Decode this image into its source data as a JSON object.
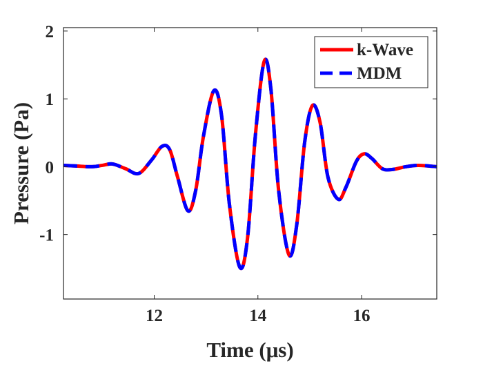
{
  "chart_data": {
    "type": "line",
    "title": "",
    "xlabel": "Time (μs)",
    "ylabel": "Pressure (Pa)",
    "xlim": [
      10.25,
      17.45
    ],
    "ylim": [
      -1.95,
      2.05
    ],
    "x_ticks": [
      12,
      14,
      16
    ],
    "y_ticks": [
      2,
      1,
      0,
      -1
    ],
    "x_tick_labels": [
      "12",
      "14",
      "16"
    ],
    "y_tick_labels": [
      "2",
      "1",
      "0",
      "-1"
    ],
    "grid": false,
    "legend_position": "top-right",
    "series": [
      {
        "name": "k-Wave",
        "color": "#ff0000",
        "style": "solid",
        "points": [
          [
            10.25,
            0.02
          ],
          [
            10.5,
            0.01
          ],
          [
            10.8,
            0.0
          ],
          [
            11.0,
            0.02
          ],
          [
            11.2,
            0.04
          ],
          [
            11.45,
            -0.03
          ],
          [
            11.7,
            -0.1
          ],
          [
            11.95,
            0.1
          ],
          [
            12.15,
            0.3
          ],
          [
            12.3,
            0.25
          ],
          [
            12.45,
            -0.15
          ],
          [
            12.65,
            -0.65
          ],
          [
            12.8,
            -0.35
          ],
          [
            12.95,
            0.45
          ],
          [
            13.15,
            1.12
          ],
          [
            13.3,
            0.75
          ],
          [
            13.45,
            -0.55
          ],
          [
            13.65,
            -1.48
          ],
          [
            13.8,
            -1.05
          ],
          [
            13.95,
            0.45
          ],
          [
            14.12,
            1.55
          ],
          [
            14.25,
            1.15
          ],
          [
            14.4,
            -0.35
          ],
          [
            14.6,
            -1.3
          ],
          [
            14.75,
            -0.85
          ],
          [
            14.9,
            0.35
          ],
          [
            15.05,
            0.9
          ],
          [
            15.2,
            0.65
          ],
          [
            15.35,
            -0.15
          ],
          [
            15.55,
            -0.48
          ],
          [
            15.7,
            -0.3
          ],
          [
            15.9,
            0.08
          ],
          [
            16.05,
            0.19
          ],
          [
            16.2,
            0.12
          ],
          [
            16.4,
            -0.03
          ],
          [
            16.6,
            -0.04
          ],
          [
            16.85,
            0.0
          ],
          [
            17.1,
            0.02
          ],
          [
            17.45,
            0.0
          ]
        ]
      },
      {
        "name": "MDM",
        "color": "#0000ff",
        "style": "dashed",
        "points": [
          [
            10.25,
            0.02
          ],
          [
            10.5,
            0.01
          ],
          [
            10.8,
            0.0
          ],
          [
            11.0,
            0.02
          ],
          [
            11.2,
            0.04
          ],
          [
            11.45,
            -0.03
          ],
          [
            11.7,
            -0.1
          ],
          [
            11.95,
            0.1
          ],
          [
            12.15,
            0.3
          ],
          [
            12.3,
            0.25
          ],
          [
            12.45,
            -0.15
          ],
          [
            12.65,
            -0.65
          ],
          [
            12.8,
            -0.35
          ],
          [
            12.95,
            0.45
          ],
          [
            13.15,
            1.12
          ],
          [
            13.3,
            0.75
          ],
          [
            13.45,
            -0.55
          ],
          [
            13.65,
            -1.48
          ],
          [
            13.8,
            -1.05
          ],
          [
            13.95,
            0.45
          ],
          [
            14.12,
            1.55
          ],
          [
            14.25,
            1.15
          ],
          [
            14.4,
            -0.35
          ],
          [
            14.6,
            -1.3
          ],
          [
            14.75,
            -0.85
          ],
          [
            14.9,
            0.35
          ],
          [
            15.05,
            0.9
          ],
          [
            15.2,
            0.65
          ],
          [
            15.35,
            -0.15
          ],
          [
            15.55,
            -0.48
          ],
          [
            15.7,
            -0.3
          ],
          [
            15.9,
            0.08
          ],
          [
            16.05,
            0.19
          ],
          [
            16.2,
            0.12
          ],
          [
            16.4,
            -0.03
          ],
          [
            16.6,
            -0.04
          ],
          [
            16.85,
            0.0
          ],
          [
            17.1,
            0.02
          ],
          [
            17.45,
            0.0
          ]
        ]
      }
    ]
  }
}
